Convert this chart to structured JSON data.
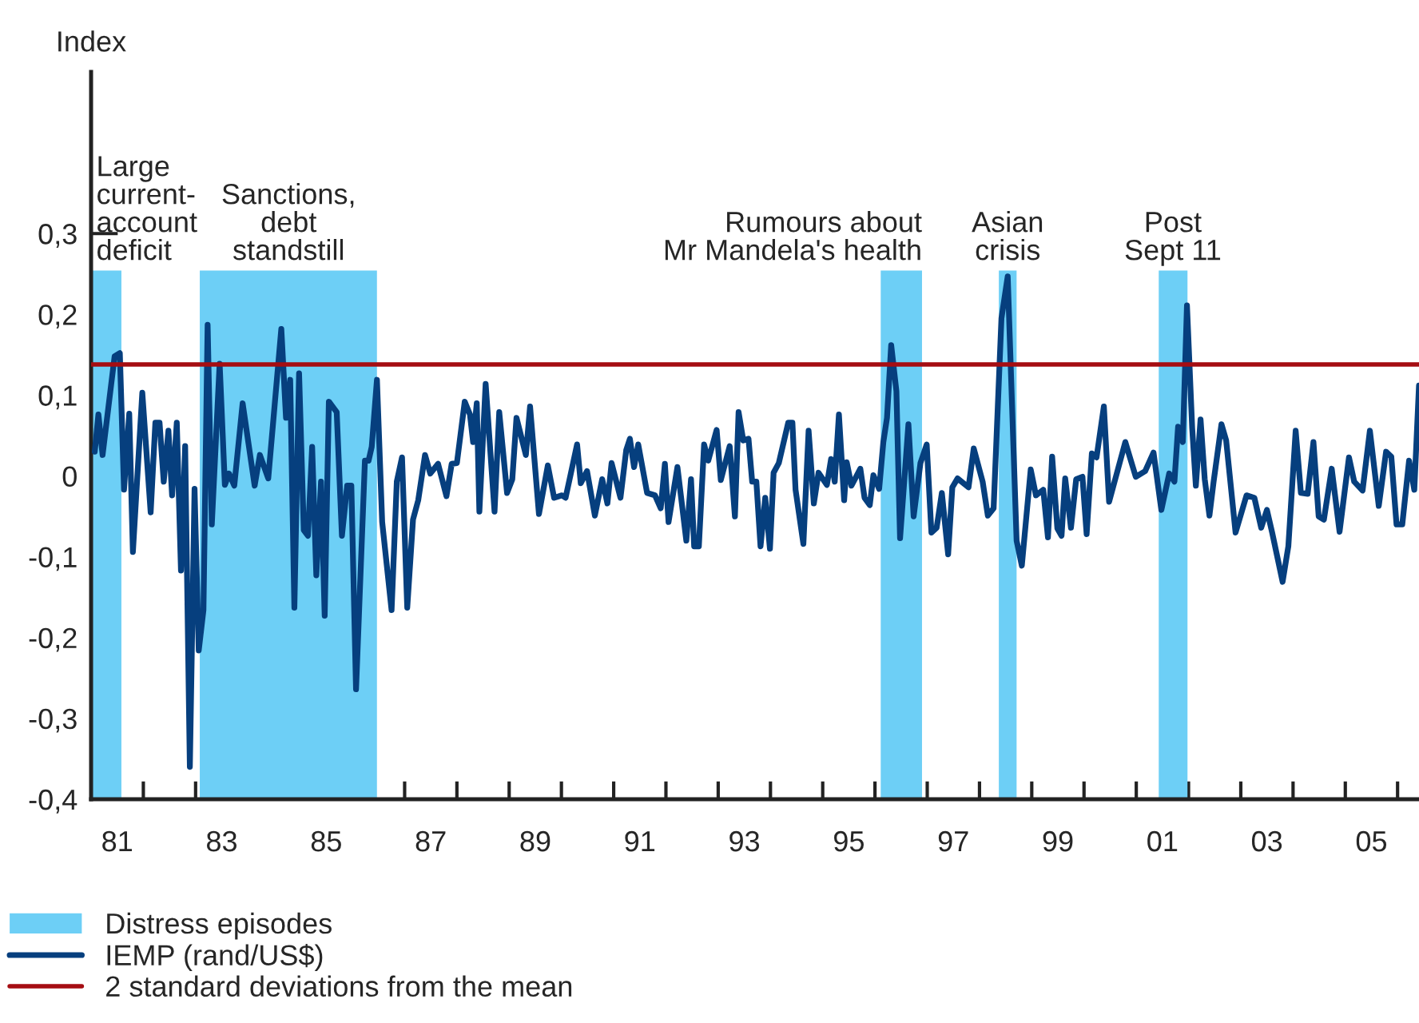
{
  "chart_data": {
    "type": "line",
    "ylabel": "Index",
    "x": [
      1980.57,
      1980.64,
      1980.72,
      1980.95,
      1981.05,
      1981.13,
      1981.23,
      1981.3,
      1981.48,
      1981.64,
      1981.73,
      1981.81,
      1981.89,
      1981.98,
      1982.05,
      1982.14,
      1982.22,
      1982.3,
      1982.39,
      1982.48,
      1982.56,
      1982.65,
      1982.73,
      1982.81,
      1982.96,
      1983.06,
      1983.14,
      1983.24,
      1983.4,
      1983.63,
      1983.73,
      1983.89,
      1984.14,
      1984.23,
      1984.31,
      1984.39,
      1984.48,
      1984.57,
      1984.65,
      1984.73,
      1984.81,
      1984.9,
      1984.97,
      1985.05,
      1985.2,
      1985.3,
      1985.4,
      1985.48,
      1985.57,
      1985.74,
      1985.81,
      1985.87,
      1985.97,
      1986.07,
      1986.25,
      1986.35,
      1986.45,
      1986.55,
      1986.66,
      1986.76,
      1986.89,
      1986.99,
      1987.14,
      1987.3,
      1987.4,
      1987.5,
      1987.65,
      1987.75,
      1987.81,
      1987.88,
      1987.93,
      1988.05,
      1988.22,
      1988.31,
      1988.46,
      1988.56,
      1988.64,
      1988.82,
      1988.9,
      1989.07,
      1989.24,
      1989.36,
      1989.51,
      1989.58,
      1989.68,
      1989.8,
      1989.87,
      1989.99,
      1990.14,
      1990.28,
      1990.38,
      1990.46,
      1990.63,
      1990.74,
      1990.81,
      1990.89,
      1990.97,
      1991.14,
      1991.29,
      1991.4,
      1991.48,
      1991.55,
      1991.72,
      1991.89,
      1991.98,
      1992.04,
      1992.13,
      1992.23,
      1992.31,
      1992.47,
      1992.55,
      1992.72,
      1992.82,
      1992.89,
      1992.98,
      1993.08,
      1993.15,
      1993.23,
      1993.31,
      1993.4,
      1993.49,
      1993.56,
      1993.66,
      1993.84,
      1993.92,
      1993.98,
      1994.13,
      1994.23,
      1994.33,
      1994.42,
      1994.58,
      1994.66,
      1994.73,
      1994.81,
      1994.91,
      1994.96,
      1995.05,
      1995.22,
      1995.3,
      1995.4,
      1995.47,
      1995.58,
      1995.66,
      1995.73,
      1995.81,
      1995.91,
      1995.98,
      1996.14,
      1996.24,
      1996.37,
      1996.49,
      1996.58,
      1996.68,
      1996.78,
      1996.9,
      1996.98,
      1997.08,
      1997.29,
      1997.39,
      1997.56,
      1997.66,
      1997.77,
      1997.92,
      1998.04,
      1998.21,
      1998.31,
      1998.48,
      1998.58,
      1998.72,
      1998.81,
      1998.89,
      1998.99,
      1999.07,
      1999.14,
      1999.25,
      1999.35,
      1999.47,
      1999.55,
      1999.65,
      1999.74,
      1999.88,
      1999.98,
      2000.29,
      2000.49,
      2000.67,
      2000.83,
      2000.98,
      2001.13,
      2001.23,
      2001.3,
      2001.39,
      2001.47,
      2001.57,
      2001.64,
      2001.73,
      2001.81,
      2001.9,
      2001.98,
      2002.13,
      2002.22,
      2002.4,
      2002.61,
      2002.76,
      2002.89,
      2003.0,
      2003.1,
      2003.3,
      2003.41,
      2003.55,
      2003.65,
      2003.78,
      2003.89,
      2003.99,
      2004.09,
      2004.24,
      2004.39,
      2004.57,
      2004.67,
      2004.83,
      2004.97,
      2005.14,
      2005.28,
      2005.38,
      2005.48,
      2005.59,
      2005.72,
      2005.82,
      2005.91
    ],
    "series": [
      {
        "name": "IEMP (rand/US$)",
        "color": "#063f7e",
        "values": [
          0.03,
          0.076,
          0.026,
          0.148,
          0.152,
          -0.017,
          0.077,
          -0.094,
          0.103,
          -0.045,
          0.066,
          0.066,
          -0.007,
          0.056,
          -0.024,
          0.066,
          -0.117,
          0.037,
          -0.36,
          -0.016,
          -0.216,
          -0.166,
          0.187,
          -0.06,
          0.139,
          -0.011,
          0.003,
          -0.012,
          0.09,
          -0.012,
          0.026,
          -0.003,
          0.182,
          0.072,
          0.119,
          -0.163,
          0.127,
          -0.067,
          -0.074,
          0.036,
          -0.123,
          -0.007,
          -0.173,
          0.092,
          0.079,
          -0.074,
          -0.012,
          -0.012,
          -0.264,
          0.019,
          0.019,
          0.036,
          0.119,
          -0.057,
          -0.166,
          -0.007,
          0.023,
          -0.163,
          -0.054,
          -0.03,
          0.026,
          0.003,
          0.015,
          -0.025,
          0.015,
          0.016,
          0.092,
          0.076,
          0.042,
          0.09,
          -0.044,
          0.114,
          -0.044,
          0.079,
          -0.021,
          -0.004,
          0.072,
          0.026,
          0.086,
          -0.047,
          0.013,
          -0.027,
          -0.024,
          -0.027,
          0.003,
          0.039,
          -0.009,
          0.006,
          -0.049,
          -0.004,
          -0.034,
          0.016,
          -0.027,
          0.032,
          0.046,
          0.011,
          0.039,
          -0.021,
          -0.024,
          -0.04,
          0.015,
          -0.057,
          0.011,
          -0.08,
          -0.004,
          -0.087,
          -0.087,
          0.039,
          0.019,
          0.057,
          -0.005,
          0.037,
          -0.05,
          0.079,
          0.044,
          0.046,
          -0.007,
          -0.007,
          -0.087,
          -0.027,
          -0.09,
          0.004,
          0.016,
          0.066,
          0.066,
          -0.017,
          -0.084,
          0.056,
          -0.034,
          0.004,
          -0.011,
          0.021,
          -0.007,
          0.076,
          -0.03,
          0.017,
          -0.012,
          0.009,
          -0.027,
          -0.036,
          0.001,
          -0.016,
          0.042,
          0.072,
          0.162,
          0.105,
          -0.077,
          0.064,
          -0.05,
          0.016,
          0.039,
          -0.07,
          -0.064,
          -0.021,
          -0.097,
          -0.014,
          -0.003,
          -0.014,
          0.034,
          -0.007,
          -0.049,
          -0.04,
          0.195,
          0.247,
          -0.08,
          -0.111,
          0.008,
          -0.024,
          -0.017,
          -0.076,
          0.024,
          -0.065,
          -0.074,
          -0.003,
          -0.064,
          -0.004,
          -0.001,
          -0.072,
          0.028,
          0.023,
          0.086,
          -0.032,
          0.042,
          -0.001,
          0.006,
          0.029,
          -0.042,
          0.003,
          -0.007,
          0.061,
          0.042,
          0.211,
          0.059,
          -0.012,
          0.07,
          -0.004,
          -0.049,
          -0.007,
          0.064,
          0.044,
          -0.07,
          -0.024,
          -0.027,
          -0.064,
          -0.042,
          -0.07,
          -0.131,
          -0.087,
          0.056,
          -0.021,
          -0.022,
          0.042,
          -0.05,
          -0.054,
          0.009,
          -0.069,
          0.023,
          -0.007,
          -0.018,
          0.056,
          -0.037,
          0.03,
          0.024,
          -0.06,
          -0.06,
          0.019,
          -0.017,
          0.112
        ]
      }
    ],
    "xlim": [
      1980.5,
      2005.91
    ],
    "xticks": [
      {
        "value": 1981,
        "label": "81"
      },
      {
        "value": 1981.5,
        "label": null
      },
      {
        "value": 1982.5,
        "label": null
      },
      {
        "value": 1983,
        "label": "83"
      },
      {
        "value": 1983.5,
        "label": null
      },
      {
        "value": 1984.5,
        "label": null
      },
      {
        "value": 1985,
        "label": "85"
      },
      {
        "value": 1985.5,
        "label": null
      },
      {
        "value": 1986.5,
        "label": null
      },
      {
        "value": 1987,
        "label": "87"
      },
      {
        "value": 1987.5,
        "label": null
      },
      {
        "value": 1988.5,
        "label": null
      },
      {
        "value": 1989,
        "label": "89"
      },
      {
        "value": 1989.5,
        "label": null
      },
      {
        "value": 1990.5,
        "label": null
      },
      {
        "value": 1991,
        "label": "91"
      },
      {
        "value": 1991.5,
        "label": null
      },
      {
        "value": 1992.5,
        "label": null
      },
      {
        "value": 1993,
        "label": "93"
      },
      {
        "value": 1993.5,
        "label": null
      },
      {
        "value": 1994.5,
        "label": null
      },
      {
        "value": 1995,
        "label": "95"
      },
      {
        "value": 1995.5,
        "label": null
      },
      {
        "value": 1996.5,
        "label": null
      },
      {
        "value": 1997,
        "label": "97"
      },
      {
        "value": 1997.5,
        "label": null
      },
      {
        "value": 1998.5,
        "label": null
      },
      {
        "value": 1999,
        "label": "99"
      },
      {
        "value": 1999.5,
        "label": null
      },
      {
        "value": 2000.5,
        "label": null
      },
      {
        "value": 2001,
        "label": "01"
      },
      {
        "value": 2001.5,
        "label": null
      },
      {
        "value": 2002.5,
        "label": null
      },
      {
        "value": 2003,
        "label": "03"
      },
      {
        "value": 2003.5,
        "label": null
      },
      {
        "value": 2004.5,
        "label": null
      },
      {
        "value": 2005,
        "label": "05"
      },
      {
        "value": 2005.5,
        "label": null
      }
    ],
    "ylim": [
      -0.4,
      0.5
    ],
    "yticks": [
      {
        "value": -0.4,
        "label": "-0,4"
      },
      {
        "value": -0.3,
        "label": "-0,3"
      },
      {
        "value": -0.2,
        "label": "-0,2"
      },
      {
        "value": -0.1,
        "label": "-0,1"
      },
      {
        "value": 0,
        "label": "0"
      },
      {
        "value": 0.1,
        "label": "0,1"
      },
      {
        "value": 0.2,
        "label": "0,2"
      },
      {
        "value": 0.3,
        "label": "0,3"
      }
    ],
    "bands": [
      {
        "axis": "x",
        "from": 1980.5,
        "to": 1981.08,
        "label": "Distress episodes",
        "color": "#6dcff6"
      },
      {
        "axis": "x",
        "from": 1982.58,
        "to": 1985.97,
        "color": "#6dcff6"
      },
      {
        "axis": "x",
        "from": 1995.61,
        "to": 1996.4,
        "color": "#6dcff6"
      },
      {
        "axis": "x",
        "from": 1997.87,
        "to": 1998.21,
        "color": "#6dcff6"
      },
      {
        "axis": "x",
        "from": 2000.93,
        "to": 2001.48,
        "color": "#6dcff6"
      }
    ],
    "ref_lines": [
      {
        "axis": "y",
        "value": 0.138,
        "label": "2 standard deviations from the mean",
        "color": "#a50d12"
      }
    ],
    "annotations": [
      {
        "text": "Large\ncurrent-\naccount\ndeficit",
        "x": 1980.5,
        "y": 0.26
      },
      {
        "text": "Sanctions,\ndebt\nstandstill",
        "x": 1984.28,
        "y": 0.26
      },
      {
        "text": "Rumours about\nMr Mandela's health",
        "x": 1996.4,
        "y": 0.26
      },
      {
        "text": "Asian\ncrisis",
        "x": 1998.04,
        "y": 0.26
      },
      {
        "text": "Post\nSept 11",
        "x": 2001.2,
        "y": 0.26
      }
    ],
    "legend": "bottom left",
    "grid": false
  }
}
